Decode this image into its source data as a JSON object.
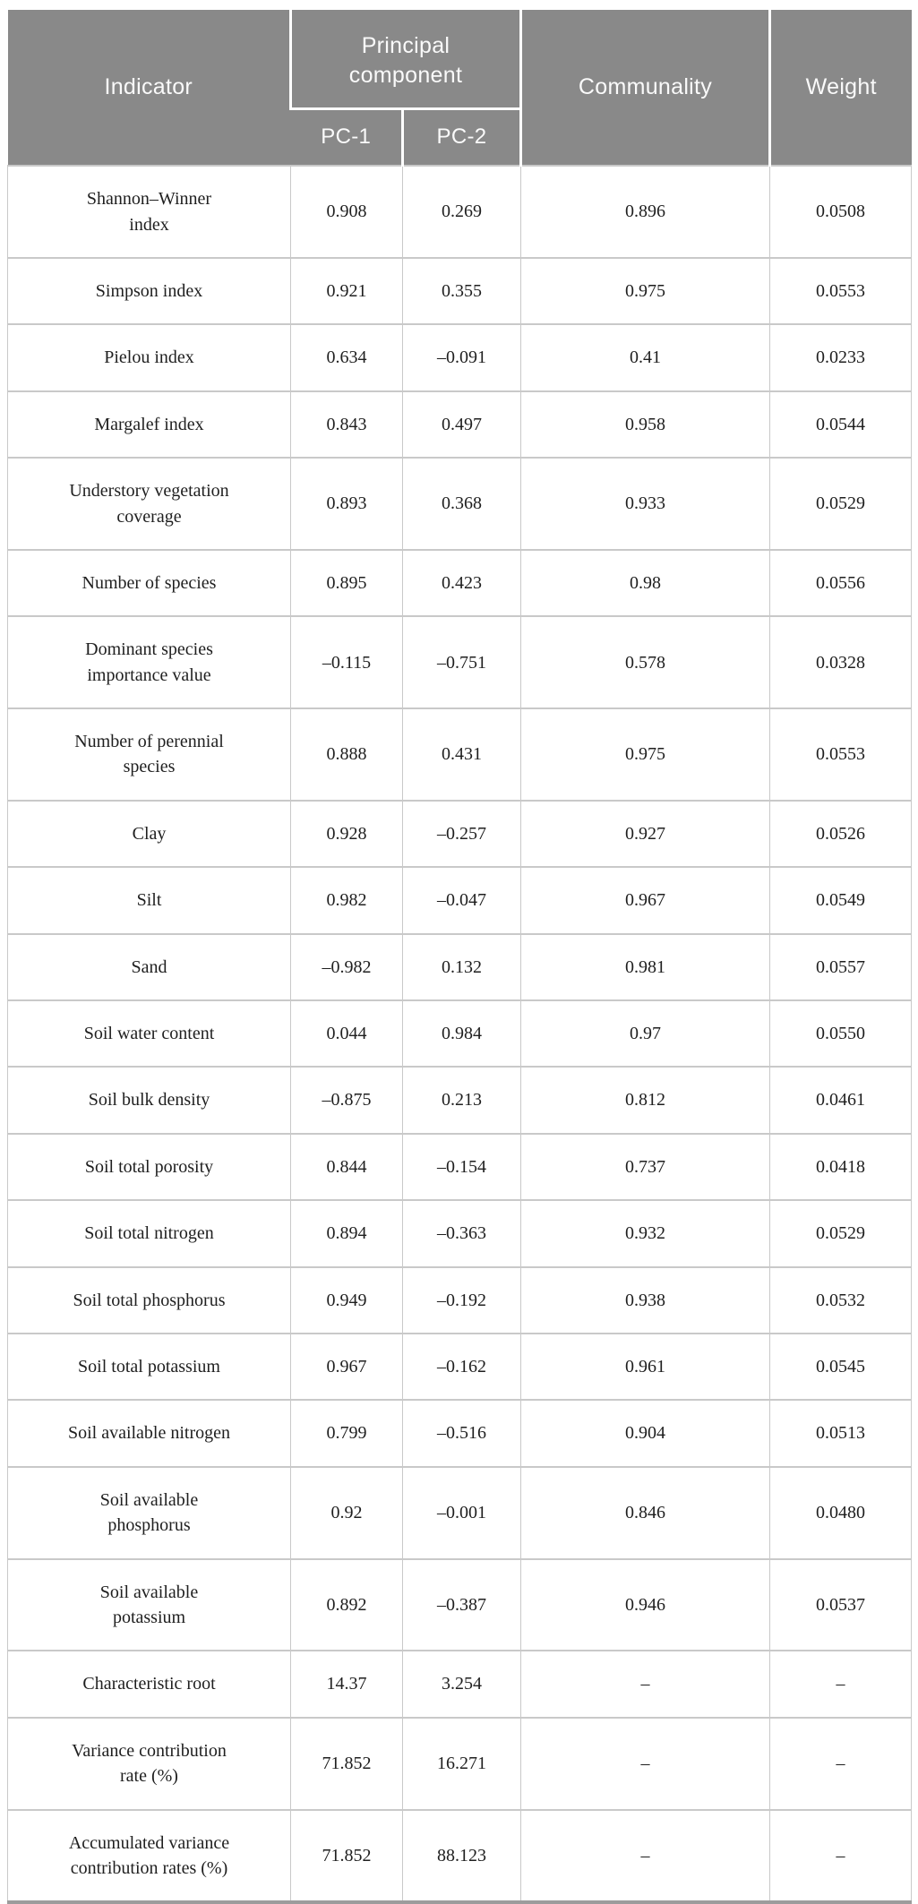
{
  "table": {
    "header": {
      "indicator": "Indicator",
      "principal_component": "Principal\ncomponent",
      "pc1": "PC-1",
      "pc2": "PC-2",
      "communality": "Communality",
      "weight": "Weight"
    },
    "rows": [
      {
        "indicator": "Shannon–Winner\nindex",
        "pc1": "0.908",
        "pc2": "0.269",
        "communality": "0.896",
        "weight": "0.0508"
      },
      {
        "indicator": "Simpson index",
        "pc1": "0.921",
        "pc2": "0.355",
        "communality": "0.975",
        "weight": "0.0553"
      },
      {
        "indicator": "Pielou index",
        "pc1": "0.634",
        "pc2": "–0.091",
        "communality": "0.41",
        "weight": "0.0233"
      },
      {
        "indicator": "Margalef index",
        "pc1": "0.843",
        "pc2": "0.497",
        "communality": "0.958",
        "weight": "0.0544"
      },
      {
        "indicator": "Understory vegetation\ncoverage",
        "pc1": "0.893",
        "pc2": "0.368",
        "communality": "0.933",
        "weight": "0.0529"
      },
      {
        "indicator": "Number of species",
        "pc1": "0.895",
        "pc2": "0.423",
        "communality": "0.98",
        "weight": "0.0556"
      },
      {
        "indicator": "Dominant species\nimportance value",
        "pc1": "–0.115",
        "pc2": "–0.751",
        "communality": "0.578",
        "weight": "0.0328"
      },
      {
        "indicator": "Number of perennial\nspecies",
        "pc1": "0.888",
        "pc2": "0.431",
        "communality": "0.975",
        "weight": "0.0553"
      },
      {
        "indicator": "Clay",
        "pc1": "0.928",
        "pc2": "–0.257",
        "communality": "0.927",
        "weight": "0.0526"
      },
      {
        "indicator": "Silt",
        "pc1": "0.982",
        "pc2": "–0.047",
        "communality": "0.967",
        "weight": "0.0549"
      },
      {
        "indicator": "Sand",
        "pc1": "–0.982",
        "pc2": "0.132",
        "communality": "0.981",
        "weight": "0.0557"
      },
      {
        "indicator": "Soil water content",
        "pc1": "0.044",
        "pc2": "0.984",
        "communality": "0.97",
        "weight": "0.0550"
      },
      {
        "indicator": "Soil bulk density",
        "pc1": "–0.875",
        "pc2": "0.213",
        "communality": "0.812",
        "weight": "0.0461"
      },
      {
        "indicator": "Soil total porosity",
        "pc1": "0.844",
        "pc2": "–0.154",
        "communality": "0.737",
        "weight": "0.0418"
      },
      {
        "indicator": "Soil total nitrogen",
        "pc1": "0.894",
        "pc2": "–0.363",
        "communality": "0.932",
        "weight": "0.0529"
      },
      {
        "indicator": "Soil total phosphorus",
        "pc1": "0.949",
        "pc2": "–0.192",
        "communality": "0.938",
        "weight": "0.0532"
      },
      {
        "indicator": "Soil total potassium",
        "pc1": "0.967",
        "pc2": "–0.162",
        "communality": "0.961",
        "weight": "0.0545"
      },
      {
        "indicator": "Soil available nitrogen",
        "pc1": "0.799",
        "pc2": "–0.516",
        "communality": "0.904",
        "weight": "0.0513"
      },
      {
        "indicator": "Soil available\nphosphorus",
        "pc1": "0.92",
        "pc2": "–0.001",
        "communality": "0.846",
        "weight": "0.0480"
      },
      {
        "indicator": "Soil available\npotassium",
        "pc1": "0.892",
        "pc2": "–0.387",
        "communality": "0.946",
        "weight": "0.0537"
      },
      {
        "indicator": "Characteristic root",
        "pc1": "14.37",
        "pc2": "3.254",
        "communality": "–",
        "weight": "–"
      },
      {
        "indicator": "Variance contribution\nrate (%)",
        "pc1": "71.852",
        "pc2": "16.271",
        "communality": "–",
        "weight": "–"
      },
      {
        "indicator": "Accumulated variance\ncontribution rates (%)",
        "pc1": "71.852",
        "pc2": "88.123",
        "communality": "–",
        "weight": "–"
      }
    ],
    "colors": {
      "header_bg": "#898989",
      "header_text": "#fafafa",
      "body_border": "#c9c9c9",
      "body_text": "#1f1f1f",
      "bottom_bar": "#9c9c9c"
    }
  }
}
